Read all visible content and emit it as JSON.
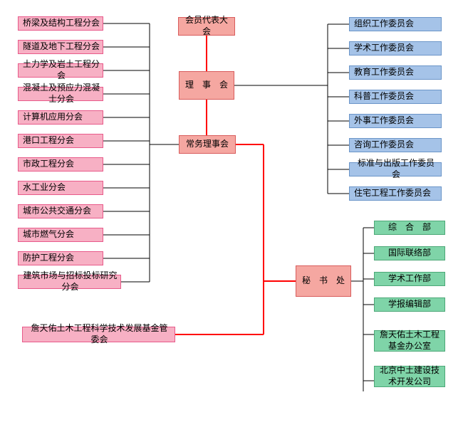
{
  "type": "org-chart",
  "colors": {
    "pink_fill": "#f7b0c4",
    "pink_border": "#e85a8a",
    "salmon_fill": "#f5a7a1",
    "salmon_border": "#d85c5c",
    "blue_fill": "#a5c3e8",
    "blue_border": "#6b95c8",
    "green_fill": "#7fd4a8",
    "green_border": "#4ca877",
    "red_line": "#ff0000",
    "black_line": "#000000"
  },
  "left_branches": [
    "桥梁及结构工程分会",
    "隧道及地下工程分会",
    "土力学及岩土工程分会",
    "混凝土及预应力混凝士分会",
    "计算机应用分会",
    "港口工程分会",
    "市政工程分会",
    "水工业分会",
    "城市公共交通分会",
    "城市燃气分会",
    "防护工程分会",
    "建筑市场与招标投标研究分会"
  ],
  "main_chain": {
    "top": "会员代表大会",
    "mid": "理　事　会",
    "bottom": "常务理事会",
    "secret": "秘　书　处"
  },
  "right_committees": [
    "组织工作委员会",
    "学术工作委员会",
    "教育工作委员会",
    "科普工作委员会",
    "外事工作委员会",
    "咨询工作委员会",
    "标准与出版工作委员会",
    "住宅工程工作委员会"
  ],
  "departments": [
    {
      "label": "综　合　部",
      "tall": false
    },
    {
      "label": "国际联络部",
      "tall": false
    },
    {
      "label": "学术工作部",
      "tall": false
    },
    {
      "label": "学报编辑部",
      "tall": false
    },
    {
      "label": "詹天佑土木工程基金办公室",
      "tall": true
    },
    {
      "label": "北京中土建设技术开发公司",
      "tall": true
    }
  ],
  "fund": "詹天佑土木工程科学技术发展基金管委会"
}
